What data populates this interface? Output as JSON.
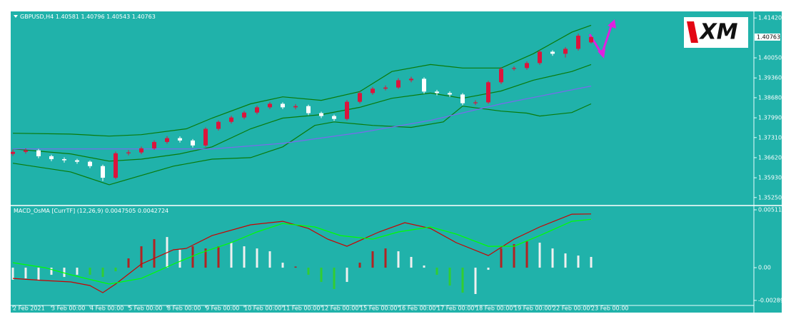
{
  "logo": "XM",
  "chart_data": [
    {
      "type": "candlestick",
      "symbol": "GBPUSD,H4",
      "xlim": [
        0,
        115.33
      ],
      "ylim": [
        1.35,
        1.4162
      ],
      "yticks": [
        {
          "value": 1.4142,
          "label": "1.41420"
        },
        {
          "value": 1.4005,
          "label": "1.40050"
        },
        {
          "value": 1.3936,
          "label": "1.39360"
        },
        {
          "value": 1.3868,
          "label": "1.38680"
        },
        {
          "value": 1.3799,
          "label": "1.37990"
        },
        {
          "value": 1.3731,
          "label": "1.37310"
        },
        {
          "value": 1.3662,
          "label": "1.36620"
        },
        {
          "value": 1.3593,
          "label": "1.35930"
        },
        {
          "value": 1.3525,
          "label": "1.35250"
        }
      ],
      "up_color": "#dc143c",
      "down_color": "#ffffff",
      "x": [
        0,
        2,
        4,
        6,
        8,
        10,
        12,
        14,
        16,
        18,
        20,
        22,
        24,
        26,
        28,
        30,
        32,
        34,
        36,
        38,
        40,
        42,
        44,
        46,
        48,
        50,
        52,
        54,
        56,
        58,
        60,
        62,
        64,
        66,
        68,
        70,
        72,
        74,
        76,
        78,
        80,
        82,
        84,
        86,
        88,
        90
      ],
      "open": [
        1.3675,
        1.3682,
        1.3687,
        1.3667,
        1.3657,
        1.3653,
        1.3648,
        1.3633,
        1.3593,
        1.3677,
        1.368,
        1.3694,
        1.3716,
        1.3729,
        1.3721,
        1.3704,
        1.3761,
        1.3785,
        1.38,
        1.3817,
        1.3835,
        1.3847,
        1.3835,
        1.3839,
        1.3815,
        1.3805,
        1.3795,
        1.3854,
        1.3884,
        1.3899,
        1.3903,
        1.3928,
        1.3933,
        1.3889,
        1.3884,
        1.3879,
        1.3849,
        1.3852,
        1.3921,
        1.3967,
        1.397,
        1.3987,
        1.4026,
        1.4019,
        1.4036,
        1.40581
      ],
      "high": [
        1.369,
        1.3694,
        1.3692,
        1.3672,
        1.3663,
        1.3658,
        1.3652,
        1.3638,
        1.3683,
        1.3688,
        1.37,
        1.3722,
        1.3736,
        1.3735,
        1.3726,
        1.3766,
        1.379,
        1.3806,
        1.3823,
        1.3841,
        1.3853,
        1.3852,
        1.3846,
        1.3844,
        1.382,
        1.381,
        1.386,
        1.389,
        1.3905,
        1.391,
        1.3935,
        1.394,
        1.3938,
        1.3895,
        1.389,
        1.3884,
        1.3859,
        1.3926,
        1.3973,
        1.3976,
        1.3993,
        1.4032,
        1.4031,
        1.4042,
        1.4088,
        1.40796
      ],
      "low": [
        1.3668,
        1.3676,
        1.366,
        1.365,
        1.3645,
        1.3641,
        1.3626,
        1.3582,
        1.3588,
        1.367,
        1.3674,
        1.3689,
        1.371,
        1.3714,
        1.3697,
        1.3699,
        1.3755,
        1.3779,
        1.3794,
        1.3811,
        1.3829,
        1.3829,
        1.3828,
        1.3808,
        1.3798,
        1.3788,
        1.379,
        1.3848,
        1.3878,
        1.3893,
        1.3898,
        1.3921,
        1.3882,
        1.3876,
        1.3871,
        1.3842,
        1.3843,
        1.3847,
        1.3915,
        1.3961,
        1.3964,
        1.3981,
        1.4012,
        1.4006,
        1.403,
        1.40543
      ],
      "close": [
        1.3682,
        1.3687,
        1.3667,
        1.3657,
        1.3653,
        1.3648,
        1.3633,
        1.3593,
        1.3677,
        1.368,
        1.3694,
        1.3716,
        1.3729,
        1.3721,
        1.3704,
        1.3761,
        1.3785,
        1.38,
        1.3817,
        1.3835,
        1.3847,
        1.3835,
        1.3839,
        1.3815,
        1.3805,
        1.3795,
        1.3854,
        1.3884,
        1.3899,
        1.3903,
        1.3928,
        1.3933,
        1.3889,
        1.3884,
        1.3879,
        1.3849,
        1.3852,
        1.3921,
        1.3967,
        1.397,
        1.3987,
        1.4026,
        1.4019,
        1.4036,
        1.4081,
        1.40763
      ],
      "series": [
        {
          "color": "#0a7a0a",
          "x": [
            0,
            9,
            15,
            20,
            27,
            31,
            37,
            42,
            48,
            54,
            59,
            65,
            70,
            76,
            81,
            87,
            90
          ],
          "values": [
            1.3746,
            1.3743,
            1.3736,
            1.3741,
            1.3761,
            1.3798,
            1.3847,
            1.3871,
            1.3859,
            1.3889,
            1.3958,
            1.3982,
            1.397,
            1.397,
            1.4019,
            1.4093,
            1.4117
          ]
        },
        {
          "color": "#0a7a0a",
          "x": [
            0,
            9,
            15,
            20,
            26,
            31,
            37,
            42,
            48,
            54,
            59,
            65,
            70,
            76,
            81,
            87,
            90
          ],
          "values": [
            1.3692,
            1.3675,
            1.365,
            1.3657,
            1.3675,
            1.3699,
            1.3761,
            1.3798,
            1.381,
            1.3835,
            1.3866,
            1.3884,
            1.3866,
            1.3891,
            1.3928,
            1.3958,
            1.3982
          ]
        },
        {
          "color": "#0a7a0a",
          "x": [
            0,
            9,
            15,
            20,
            25,
            31,
            37,
            42,
            47,
            50,
            56,
            62,
            67,
            70,
            76,
            80,
            82,
            87,
            90
          ],
          "values": [
            1.3643,
            1.3613,
            1.3569,
            1.3601,
            1.3633,
            1.3657,
            1.3662,
            1.3699,
            1.3773,
            1.3785,
            1.3773,
            1.3766,
            1.3785,
            1.3839,
            1.3822,
            1.3815,
            1.3805,
            1.3817,
            1.3847
          ]
        },
        {
          "color": "#7b68ee",
          "x": [
            0,
            31,
            42,
            54,
            65,
            76,
            90
          ],
          "values": [
            1.3692,
            1.3692,
            1.3711,
            1.3748,
            1.379,
            1.3847,
            1.3908
          ]
        }
      ]
    },
    {
      "type": "macd",
      "indicator": "MACD_OsMA [CurrTF] (12,26,9)",
      "xlim": [
        0,
        115.33
      ],
      "ylim": [
        -0.00334,
        0.00543
      ],
      "yticks": [
        0.005114,
        {
          "value": 0,
          "label": "0.00"
        },
        -0.002895
      ],
      "xticks": [
        {
          "value": 0,
          "label": "2 Feb 2021"
        },
        {
          "value": 6,
          "label": "3 Feb 00:00"
        },
        {
          "value": 12,
          "label": "4 Feb 00:00"
        },
        {
          "value": 18,
          "label": "5 Feb 00:00"
        },
        {
          "value": 24,
          "label": "8 Feb 00:00"
        },
        {
          "value": 30,
          "label": "9 Feb 00:00"
        },
        {
          "value": 36,
          "label": "10 Feb 00:00"
        },
        {
          "value": 42,
          "label": "11 Feb 00:00"
        },
        {
          "value": 48,
          "label": "12 Feb 00:00"
        },
        {
          "value": 54,
          "label": "15 Feb 00:00"
        },
        {
          "value": 60,
          "label": "16 Feb 00:00"
        },
        {
          "value": 66,
          "label": "17 Feb 00:00"
        },
        {
          "value": 72,
          "label": "18 Feb 00:00"
        },
        {
          "value": 78,
          "label": "19 Feb 00:00"
        },
        {
          "value": 84,
          "label": "22 Feb 00:00"
        },
        {
          "value": 90,
          "label": "23 Feb 00:00"
        }
      ],
      "x": [
        0,
        2,
        4,
        6,
        8,
        10,
        12,
        14,
        16,
        18,
        20,
        22,
        24,
        26,
        28,
        30,
        32,
        34,
        36,
        38,
        40,
        42,
        44,
        46,
        48,
        50,
        52,
        54,
        56,
        58,
        60,
        62,
        64,
        66,
        68,
        70,
        72,
        74,
        76,
        78,
        80,
        82,
        84,
        86,
        88,
        90
      ],
      "values": [
        -0.00107,
        -0.00095,
        -0.00114,
        -0.00063,
        -0.00082,
        -0.00063,
        -0.00063,
        -0.00082,
        -0.00032,
        0.00082,
        0.00189,
        0.00252,
        0.00271,
        0.00158,
        0.00189,
        0.0017,
        0.00189,
        0.00221,
        0.00189,
        0.0017,
        0.00145,
        0.00044,
        0.0001,
        -0.00063,
        -0.00126,
        -0.00189,
        -0.00126,
        0.00044,
        0.00145,
        0.0017,
        0.00145,
        0.00095,
        0.00019,
        -0.00063,
        -0.00158,
        -0.00221,
        -0.00233,
        -0.00019,
        0.0017,
        0.00208,
        0.00233,
        0.00221,
        0.0017,
        0.00126,
        0.00107,
        0.00095
      ],
      "colors": [
        "#f0f0f0",
        "#f0f0f0",
        "#f0f0f0",
        "#f0f0f0",
        "#f0f0f0",
        "#f0f0f0",
        "#32cd32",
        "#32cd32",
        "#32cd32",
        "#b22222",
        "#b22222",
        "#b22222",
        "#f0f0f0",
        "#f0f0f0",
        "#b22222",
        "#b22222",
        "#b22222",
        "#f0f0f0",
        "#f0f0f0",
        "#f0f0f0",
        "#f0f0f0",
        "#f0f0f0",
        "#b22222",
        "#32cd32",
        "#32cd32",
        "#32cd32",
        "#f0f0f0",
        "#b22222",
        "#b22222",
        "#b22222",
        "#f0f0f0",
        "#f0f0f0",
        "#f0f0f0",
        "#32cd32",
        "#32cd32",
        "#32cd32",
        "#f0f0f0",
        "#f0f0f0",
        "#b22222",
        "#b22222",
        "#b22222",
        "#f0f0f0",
        "#f0f0f0",
        "#f0f0f0",
        "#f0f0f0",
        "#f0f0f0"
      ],
      "series": [
        {
          "color": "#cc0000",
          "x": [
            0,
            5,
            9,
            12,
            14,
            16,
            20,
            25,
            27,
            31,
            37,
            42,
            46,
            49,
            52,
            57,
            61,
            65,
            69,
            74,
            78,
            82,
            87,
            90
          ],
          "values": [
            -0.00095,
            -0.00114,
            -0.00126,
            -0.00158,
            -0.00221,
            -0.00145,
            0.00032,
            0.00158,
            0.0017,
            0.00284,
            0.00379,
            0.0041,
            0.00347,
            0.00252,
            0.00189,
            0.00316,
            0.00398,
            0.00347,
            0.00221,
            0.00107,
            0.00252,
            0.0036,
            0.00473,
            0.0047505
          ]
        },
        {
          "color": "#00ff00",
          "x": [
            0,
            5,
            9,
            15,
            20,
            25,
            29,
            34,
            38,
            42,
            47,
            51,
            56,
            60,
            65,
            69,
            74,
            78,
            82,
            87,
            90
          ],
          "values": [
            0.00044,
            0,
            -0.00063,
            -0.00145,
            -0.00095,
            0.00032,
            0.00126,
            0.00221,
            0.00316,
            0.00391,
            0.0036,
            0.00284,
            0.00252,
            0.00316,
            0.0036,
            0.00297,
            0.00189,
            0.00189,
            0.00284,
            0.0041,
            0.0042724
          ]
        }
      ]
    }
  ]
}
